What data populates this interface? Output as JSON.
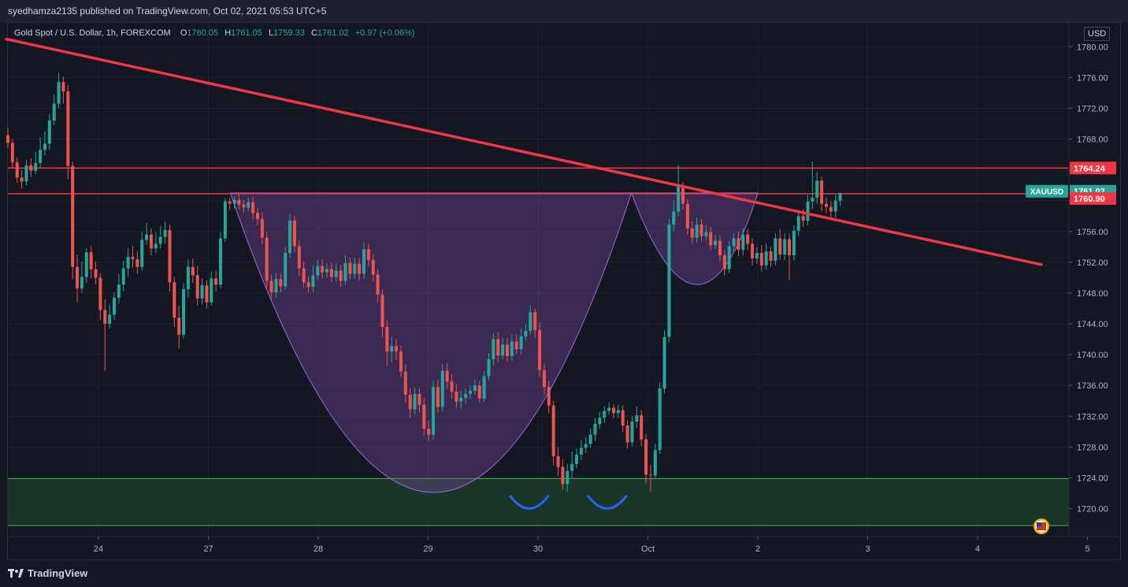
{
  "header": {
    "publisher_line": "syedhamza2135 published on TradingView.com, Oct 02, 2021 05:53 UTC+5"
  },
  "legend": {
    "symbol": "Gold Spot / U.S. Dollar, 1h, FOREXCOM",
    "open_label": "O",
    "open": "1760.05",
    "high_label": "H",
    "high": "1761.05",
    "low_label": "L",
    "low": "1759.33",
    "close_label": "C",
    "close": "1761.02",
    "change": "+0.97 (+0.06%)"
  },
  "currency": "USD",
  "footer": {
    "brand": "TradingView"
  },
  "colors": {
    "background": "#131722",
    "up": "#26a69a",
    "down": "#ef5350",
    "trendline": "#f23645",
    "pattern_fill": "#7b4aa0",
    "support_zone": "#1b3a2a",
    "support_line": "#4caf50",
    "double_bottom_arc": "#2962ff"
  },
  "chart_data": {
    "type": "candlestick",
    "title": "",
    "ylim": [
      1717.5,
      1783
    ],
    "y_ticks": [
      "1780.00",
      "1776.00",
      "1772.00",
      "1768.00",
      "1764.00",
      "1760.00",
      "1756.00",
      "1752.00",
      "1748.00",
      "1744.00",
      "1740.00",
      "1736.00",
      "1732.00",
      "1728.00",
      "1724.00",
      "1720.00"
    ],
    "x_ticks": [
      {
        "label": "24",
        "day": 0
      },
      {
        "label": "27",
        "day": 1
      },
      {
        "label": "28",
        "day": 2
      },
      {
        "label": "29",
        "day": 3
      },
      {
        "label": "30",
        "day": 4
      },
      {
        "label": "Oct",
        "day": 5
      },
      {
        "label": "2",
        "day": 6
      },
      {
        "label": "3",
        "day": 7
      },
      {
        "label": "4",
        "day": 8
      },
      {
        "label": "5",
        "day": 9
      }
    ],
    "price_labels": [
      {
        "text": "1764.24",
        "value": 1764.24,
        "color": "#f23645"
      },
      {
        "text": "1761.02",
        "value": 1761.02,
        "color": "#26a69a",
        "symbol": "XAUUSD"
      },
      {
        "text": "1760.90",
        "value": 1760.9,
        "color": "#f23645"
      }
    ],
    "horizontal_lines": [
      1764.24,
      1760.9
    ],
    "support_zone": [
      1717.8,
      1723.9
    ],
    "trendline": [
      {
        "day": -0.84,
        "price": 1781.0
      },
      {
        "day": 8.58,
        "price": 1751.7
      }
    ],
    "cup_and_handle": {
      "cup": {
        "left": {
          "day": 1.2,
          "price": 1761.0
        },
        "bottom": {
          "day": 3.05,
          "price": 1722.1
        },
        "right": {
          "day": 4.85,
          "price": 1761.0
        }
      },
      "handle": {
        "left": {
          "day": 4.85,
          "price": 1761.0
        },
        "bottom": {
          "day": 5.45,
          "price": 1749.1
        },
        "right": {
          "day": 6.0,
          "price": 1761.0
        }
      }
    },
    "double_bottom_marks": [
      {
        "day": 3.92,
        "price": 1721.5
      },
      {
        "day": 4.63,
        "price": 1721.5
      }
    ],
    "candles": [
      [
        1768.5,
        1767.5,
        1769.5,
        1766.8
      ],
      [
        1767.5,
        1765.0,
        1768.0,
        1764.2
      ],
      [
        1765.0,
        1763.0,
        1765.6,
        1762.3
      ],
      [
        1763.0,
        1762.5,
        1764.0,
        1761.6
      ],
      [
        1762.5,
        1764.6,
        1765.3,
        1762.0
      ],
      [
        1764.6,
        1763.9,
        1765.5,
        1763.1
      ],
      [
        1763.9,
        1764.9,
        1766.3,
        1763.5
      ],
      [
        1764.9,
        1766.6,
        1768.2,
        1764.3
      ],
      [
        1766.6,
        1767.4,
        1769.0,
        1765.9
      ],
      [
        1767.4,
        1770.4,
        1771.3,
        1766.6
      ],
      [
        1770.4,
        1772.6,
        1773.8,
        1769.8
      ],
      [
        1772.6,
        1775.4,
        1776.6,
        1772.0
      ],
      [
        1775.4,
        1774.2,
        1776.1,
        1772.6
      ],
      [
        1774.2,
        1764.5,
        1775.0,
        1762.8
      ],
      [
        1764.5,
        1751.4,
        1765.1,
        1749.8
      ],
      [
        1751.4,
        1748.6,
        1753.0,
        1746.8
      ],
      [
        1748.6,
        1750.1,
        1752.1,
        1748.0
      ],
      [
        1750.1,
        1753.3,
        1753.8,
        1749.3
      ],
      [
        1753.3,
        1751.1,
        1754.1,
        1749.9
      ],
      [
        1751.1,
        1750.0,
        1752.1,
        1749.1
      ],
      [
        1750.0,
        1745.8,
        1750.6,
        1744.5
      ],
      [
        1745.8,
        1744.0,
        1747.2,
        1737.9
      ],
      [
        1744.0,
        1745.2,
        1746.5,
        1743.4
      ],
      [
        1745.2,
        1747.4,
        1748.1,
        1744.5
      ],
      [
        1747.4,
        1749.1,
        1750.5,
        1746.6
      ],
      [
        1749.1,
        1751.2,
        1752.2,
        1748.2
      ],
      [
        1751.2,
        1752.7,
        1753.8,
        1750.1
      ],
      [
        1752.7,
        1752.4,
        1754.1,
        1751.3
      ],
      [
        1752.4,
        1751.4,
        1753.4,
        1750.5
      ],
      [
        1751.4,
        1754.9,
        1756.0,
        1750.9
      ],
      [
        1754.9,
        1755.6,
        1757.1,
        1754.2
      ],
      [
        1755.6,
        1753.8,
        1756.4,
        1752.9
      ],
      [
        1753.8,
        1754.4,
        1755.9,
        1753.2
      ],
      [
        1754.4,
        1755.3,
        1756.7,
        1753.8
      ],
      [
        1755.3,
        1756.2,
        1757.3,
        1754.4
      ],
      [
        1756.2,
        1749.4,
        1756.9,
        1748.2
      ],
      [
        1749.4,
        1744.8,
        1750.1,
        1743.6
      ],
      [
        1744.8,
        1742.6,
        1746.4,
        1740.8
      ],
      [
        1742.6,
        1748.5,
        1749.3,
        1742.1
      ],
      [
        1748.5,
        1751.4,
        1752.4,
        1747.4
      ],
      [
        1751.4,
        1750.3,
        1752.5,
        1749.3
      ],
      [
        1750.3,
        1747.3,
        1751.5,
        1746.4
      ],
      [
        1747.3,
        1749.0,
        1749.9,
        1746.5
      ],
      [
        1749.0,
        1746.8,
        1749.7,
        1746.0
      ],
      [
        1746.8,
        1749.9,
        1750.8,
        1746.4
      ],
      [
        1749.9,
        1749.1,
        1750.9,
        1748.2
      ],
      [
        1749.1,
        1755.1,
        1755.9,
        1748.6
      ],
      [
        1755.1,
        1759.9,
        1760.3,
        1754.6
      ],
      [
        1759.9,
        1759.6,
        1760.4,
        1758.8
      ],
      [
        1759.6,
        1760.1,
        1760.6,
        1759.0
      ],
      [
        1760.1,
        1759.5,
        1760.8,
        1758.9
      ],
      [
        1759.5,
        1759.1,
        1760.1,
        1758.4
      ],
      [
        1759.1,
        1759.8,
        1760.4,
        1758.6
      ],
      [
        1759.8,
        1758.4,
        1760.5,
        1757.6
      ],
      [
        1758.4,
        1757.6,
        1759.1,
        1756.8
      ],
      [
        1757.6,
        1755.2,
        1758.5,
        1754.4
      ],
      [
        1755.2,
        1749.6,
        1755.9,
        1748.6
      ],
      [
        1749.6,
        1748.1,
        1750.4,
        1747.2
      ],
      [
        1748.1,
        1749.8,
        1750.6,
        1747.4
      ],
      [
        1749.8,
        1748.9,
        1750.6,
        1748.1
      ],
      [
        1748.9,
        1753.2,
        1754.0,
        1748.4
      ],
      [
        1753.2,
        1757.4,
        1758.3,
        1752.6
      ],
      [
        1757.4,
        1754.1,
        1758.0,
        1753.3
      ],
      [
        1754.1,
        1751.2,
        1754.9,
        1750.2
      ],
      [
        1751.2,
        1749.4,
        1752.1,
        1748.7
      ],
      [
        1749.4,
        1748.8,
        1750.2,
        1748.0
      ],
      [
        1748.8,
        1750.3,
        1751.6,
        1748.1
      ],
      [
        1750.3,
        1751.5,
        1752.3,
        1749.8
      ],
      [
        1751.5,
        1750.7,
        1752.4,
        1749.9
      ],
      [
        1750.7,
        1751.1,
        1751.9,
        1750.0
      ],
      [
        1751.1,
        1750.1,
        1751.9,
        1749.4
      ],
      [
        1750.1,
        1750.9,
        1751.8,
        1749.5
      ],
      [
        1750.9,
        1749.6,
        1751.7,
        1748.8
      ],
      [
        1749.6,
        1751.9,
        1752.9,
        1749.1
      ],
      [
        1751.9,
        1750.5,
        1752.6,
        1749.8
      ],
      [
        1750.5,
        1751.8,
        1752.6,
        1749.9
      ],
      [
        1751.8,
        1750.5,
        1752.5,
        1749.6
      ],
      [
        1750.5,
        1753.7,
        1754.6,
        1749.8
      ],
      [
        1753.7,
        1752.3,
        1754.4,
        1751.4
      ],
      [
        1752.3,
        1750.4,
        1753.1,
        1749.5
      ],
      [
        1750.4,
        1747.8,
        1751.1,
        1746.8
      ],
      [
        1747.8,
        1743.6,
        1748.5,
        1742.3
      ],
      [
        1743.6,
        1740.4,
        1744.5,
        1738.6
      ],
      [
        1740.4,
        1741.1,
        1742.3,
        1739.0
      ],
      [
        1741.1,
        1740.4,
        1742.0,
        1739.3
      ],
      [
        1740.4,
        1737.8,
        1741.2,
        1737.1
      ],
      [
        1737.8,
        1734.8,
        1738.7,
        1733.8
      ],
      [
        1734.8,
        1732.9,
        1735.6,
        1731.8
      ],
      [
        1732.9,
        1734.9,
        1735.7,
        1732.2
      ],
      [
        1734.9,
        1733.5,
        1735.6,
        1732.5
      ],
      [
        1733.5,
        1730.4,
        1734.4,
        1729.5
      ],
      [
        1730.4,
        1729.6,
        1731.4,
        1728.8
      ],
      [
        1729.6,
        1735.8,
        1736.6,
        1729.0
      ],
      [
        1735.8,
        1733.2,
        1736.7,
        1732.4
      ],
      [
        1733.2,
        1737.9,
        1738.8,
        1732.6
      ],
      [
        1737.9,
        1736.5,
        1738.9,
        1735.6
      ],
      [
        1736.5,
        1735.2,
        1737.5,
        1734.3
      ],
      [
        1735.2,
        1733.9,
        1736.2,
        1733.1
      ],
      [
        1733.9,
        1734.4,
        1735.3,
        1733.0
      ],
      [
        1734.4,
        1734.9,
        1735.6,
        1733.6
      ],
      [
        1734.9,
        1735.3,
        1736.0,
        1734.2
      ],
      [
        1735.3,
        1736.0,
        1736.8,
        1734.8
      ],
      [
        1736.0,
        1734.3,
        1736.6,
        1733.8
      ],
      [
        1734.3,
        1737.2,
        1737.9,
        1733.9
      ],
      [
        1737.2,
        1739.4,
        1740.2,
        1736.6
      ],
      [
        1739.4,
        1742.0,
        1742.8,
        1738.6
      ],
      [
        1742.0,
        1739.9,
        1742.9,
        1739.0
      ],
      [
        1739.9,
        1741.3,
        1742.2,
        1739.4
      ],
      [
        1741.3,
        1739.8,
        1742.2,
        1739.1
      ],
      [
        1739.8,
        1741.7,
        1742.6,
        1739.2
      ],
      [
        1741.7,
        1740.7,
        1742.6,
        1740.1
      ],
      [
        1740.7,
        1742.4,
        1743.4,
        1740.0
      ],
      [
        1742.4,
        1743.1,
        1744.0,
        1741.8
      ],
      [
        1743.1,
        1745.5,
        1746.4,
        1742.6
      ],
      [
        1745.5,
        1743.2,
        1746.0,
        1742.2
      ],
      [
        1743.2,
        1738.0,
        1744.2,
        1737.1
      ],
      [
        1738.0,
        1735.8,
        1738.8,
        1734.8
      ],
      [
        1735.8,
        1733.4,
        1736.6,
        1732.4
      ],
      [
        1733.4,
        1726.8,
        1734.0,
        1725.6
      ],
      [
        1726.8,
        1725.4,
        1728.0,
        1724.2
      ],
      [
        1725.4,
        1723.2,
        1726.4,
        1722.4
      ],
      [
        1723.2,
        1724.9,
        1725.8,
        1722.2
      ],
      [
        1724.9,
        1725.8,
        1727.4,
        1724.0
      ],
      [
        1725.8,
        1727.0,
        1727.8,
        1725.2
      ],
      [
        1727.0,
        1727.9,
        1728.9,
        1726.3
      ],
      [
        1727.9,
        1728.4,
        1729.3,
        1727.2
      ],
      [
        1728.4,
        1729.6,
        1730.4,
        1727.9
      ],
      [
        1729.6,
        1731.0,
        1731.8,
        1728.8
      ],
      [
        1731.0,
        1731.8,
        1732.6,
        1730.4
      ],
      [
        1731.8,
        1732.7,
        1733.3,
        1731.1
      ],
      [
        1732.7,
        1733.1,
        1733.8,
        1732.2
      ],
      [
        1733.1,
        1732.4,
        1733.6,
        1731.7
      ],
      [
        1732.4,
        1732.8,
        1733.5,
        1731.8
      ],
      [
        1732.8,
        1730.8,
        1733.4,
        1729.9
      ],
      [
        1730.8,
        1728.6,
        1731.5,
        1727.8
      ],
      [
        1728.6,
        1731.3,
        1732.0,
        1728.1
      ],
      [
        1731.3,
        1732.1,
        1733.3,
        1730.5
      ],
      [
        1732.1,
        1729.0,
        1732.8,
        1728.1
      ],
      [
        1729.0,
        1724.4,
        1729.7,
        1723.3
      ],
      [
        1724.4,
        1724.3,
        1725.7,
        1722.2
      ],
      [
        1724.3,
        1727.6,
        1728.4,
        1723.8
      ],
      [
        1727.6,
        1735.6,
        1736.4,
        1727.1
      ],
      [
        1735.6,
        1742.3,
        1743.2,
        1735.0
      ],
      [
        1742.3,
        1756.9,
        1757.6,
        1741.6
      ],
      [
        1756.9,
        1758.6,
        1760.0,
        1756.1
      ],
      [
        1758.6,
        1761.9,
        1764.6,
        1758.0
      ],
      [
        1761.9,
        1759.6,
        1762.4,
        1758.9
      ],
      [
        1759.6,
        1756.4,
        1760.2,
        1755.6
      ],
      [
        1756.4,
        1755.2,
        1757.3,
        1754.4
      ],
      [
        1755.2,
        1756.9,
        1757.8,
        1754.5
      ],
      [
        1756.9,
        1755.4,
        1757.6,
        1754.7
      ],
      [
        1755.4,
        1755.9,
        1756.8,
        1754.9
      ],
      [
        1755.9,
        1754.2,
        1756.6,
        1753.6
      ],
      [
        1754.2,
        1754.8,
        1755.6,
        1753.7
      ],
      [
        1754.8,
        1752.9,
        1755.5,
        1752.1
      ],
      [
        1752.9,
        1751.1,
        1753.6,
        1750.3
      ],
      [
        1751.1,
        1754.1,
        1754.8,
        1750.6
      ],
      [
        1754.1,
        1755.1,
        1755.8,
        1753.4
      ],
      [
        1755.1,
        1753.6,
        1756.0,
        1752.8
      ],
      [
        1753.6,
        1755.6,
        1756.4,
        1752.9
      ],
      [
        1755.6,
        1754.4,
        1756.3,
        1753.6
      ],
      [
        1754.4,
        1752.5,
        1755.1,
        1751.6
      ],
      [
        1752.5,
        1753.2,
        1754.0,
        1751.8
      ],
      [
        1753.2,
        1751.6,
        1754.2,
        1750.8
      ],
      [
        1751.6,
        1753.4,
        1754.4,
        1751.0
      ],
      [
        1753.4,
        1752.2,
        1754.0,
        1751.4
      ],
      [
        1752.2,
        1755.1,
        1755.8,
        1751.6
      ],
      [
        1755.1,
        1753.0,
        1756.3,
        1752.3
      ],
      [
        1753.0,
        1755.0,
        1755.8,
        1752.3
      ],
      [
        1755.0,
        1752.9,
        1755.7,
        1749.7
      ],
      [
        1752.9,
        1756.1,
        1756.8,
        1752.2
      ],
      [
        1756.1,
        1758.0,
        1758.8,
        1755.4
      ],
      [
        1758.0,
        1757.4,
        1758.9,
        1756.6
      ],
      [
        1757.4,
        1759.9,
        1760.8,
        1756.8
      ],
      [
        1759.9,
        1760.4,
        1765.1,
        1758.9
      ],
      [
        1760.4,
        1762.6,
        1763.7,
        1759.6
      ],
      [
        1762.6,
        1759.6,
        1763.1,
        1758.6
      ],
      [
        1759.6,
        1759.2,
        1760.4,
        1758.4
      ],
      [
        1759.2,
        1758.6,
        1759.9,
        1757.8
      ],
      [
        1758.6,
        1760.0,
        1760.8,
        1757.8
      ],
      [
        1760.0,
        1761.0,
        1761.1,
        1759.3
      ]
    ]
  }
}
